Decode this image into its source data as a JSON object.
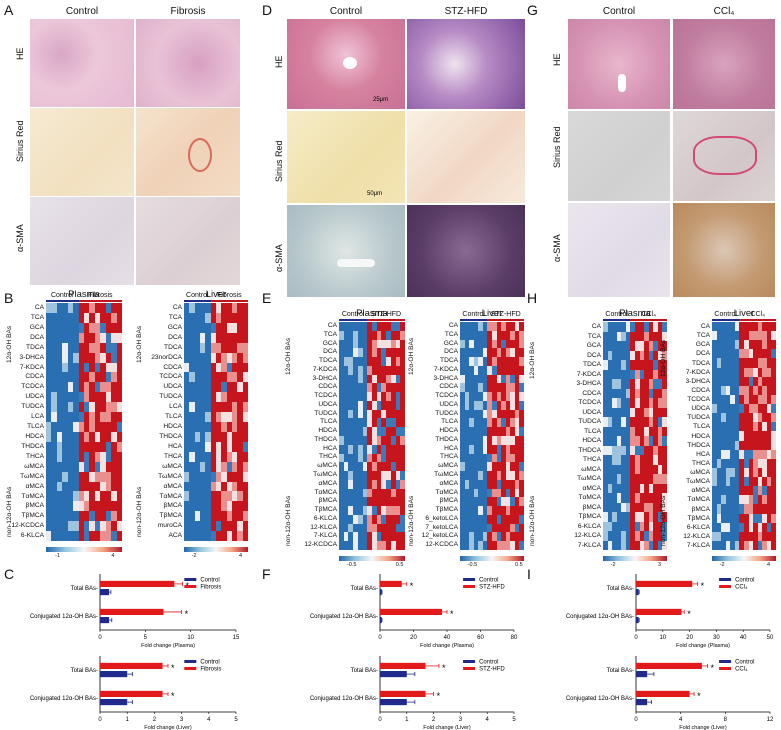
{
  "panels": {
    "A": {
      "label": "A",
      "col1": "Control",
      "col2": "Fibrosis",
      "rows": [
        "HE",
        "Sirius Red",
        "α-SMA"
      ]
    },
    "D": {
      "label": "D",
      "col1": "Control",
      "col2": "STZ-HFD",
      "rows": [
        "HE",
        "Sirius Red",
        "α-SMA"
      ],
      "scale1": "25μm",
      "scale2": "50μm"
    },
    "G": {
      "label": "G",
      "col1": "Control",
      "col2": "CCl₄",
      "rows": [
        "HE",
        "Sirius Red",
        "α-SMA"
      ]
    },
    "B": {
      "label": "B"
    },
    "E": {
      "label": "E"
    },
    "H": {
      "label": "H"
    },
    "C": {
      "label": "C"
    },
    "F": {
      "label": "F"
    },
    "I": {
      "label": "I"
    }
  },
  "heatmaps": {
    "B": {
      "plasma": {
        "title": "Plasma",
        "g1": "Control",
        "g2": "Fibrosis",
        "rows": [
          "CA",
          "TCA",
          "GCA",
          "DCA",
          "TDCA",
          "3-DHCA",
          "7-KDCA",
          "CDCA",
          "TCDCA",
          "UDCA",
          "TUDCA",
          "LCA",
          "TLCA",
          "HDCA",
          "THDCA",
          "THCA",
          "ωMCA",
          "TωMCA",
          "αMCA",
          "TαMCA",
          "βMCA",
          "TβMCA",
          "12-KCDCA",
          "6-KLCA"
        ],
        "side_top": "12α-OH BAs",
        "side_bot": "non-12α-OH BAs",
        "scale": [
          "-1",
          "4"
        ]
      },
      "liver": {
        "title": "Liver",
        "g1": "Control",
        "g2": "Fibrosis",
        "rows": [
          "CA",
          "TCA",
          "GCA",
          "DCA",
          "TDCA",
          "23norDCA",
          "CDCA",
          "TCDCA",
          "UDCA",
          "TUDCA",
          "LCA",
          "TLCA",
          "HDCA",
          "THDCA",
          "HCA",
          "THCA",
          "ωMCA",
          "TωMCA",
          "αMCA",
          "TαMCA",
          "βMCA",
          "TβMCA",
          "muroCA",
          "ACA"
        ],
        "side_top": "12α-OH BAs",
        "side_bot": "non-12α-OH BAs",
        "scale": [
          "-2",
          "4"
        ]
      }
    },
    "E": {
      "plasma": {
        "title": "Plasma",
        "g1": "Control",
        "g2": "STZ-HFD",
        "rows": [
          "CA",
          "TCA",
          "GCA",
          "DCA",
          "TDCA",
          "7-KDCA",
          "3-DHCA",
          "CDCA",
          "TCDCA",
          "UDCA",
          "TUDCA",
          "TLCA",
          "HDCA",
          "THDCA",
          "HCA",
          "THCA",
          "ωMCA",
          "TωMCA",
          "αMCA",
          "TαMCA",
          "βMCA",
          "TβMCA",
          "6-KLCA",
          "12-KLCA",
          "7-KLCA",
          "12-KCDCA"
        ],
        "side_top": "12α-OH BAs",
        "side_bot": "non-12α-OH BAs",
        "scale": [
          "-0.5",
          "0.5"
        ]
      },
      "liver": {
        "title": "Liver",
        "g1": "Control",
        "g2": "STZ-HFD",
        "rows": [
          "CA",
          "TCA",
          "GCA",
          "DCA",
          "TDCA",
          "7-KDCA",
          "3-DHCA",
          "CDCA",
          "TCDCA",
          "UDCA",
          "TUDCA",
          "TLCA",
          "HDCA",
          "THDCA",
          "HCA",
          "THCA",
          "ωMCA",
          "TωMCA",
          "αMCA",
          "TαMCA",
          "βMCA",
          "TβMCA",
          "6_ketoLCA",
          "7_ketoLCA",
          "12_ketoLCA",
          "12-KCDCA"
        ],
        "side_top": "12α-OH BAs",
        "side_bot": "non-12α-OH BAs",
        "scale": [
          "-0.5",
          "0.5"
        ]
      }
    },
    "H": {
      "plasma": {
        "title": "Plasma",
        "g1": "Control",
        "g2": "CCl₄",
        "rows": [
          "CA",
          "TCA",
          "GCA",
          "DCA",
          "TDCA",
          "7-KDCA",
          "3-DHCA",
          "CDCA",
          "TCDCA",
          "UDCA",
          "TUDCA",
          "TLCA",
          "HDCA",
          "THDCA",
          "THCA",
          "ωMCA",
          "TωMCA",
          "αMCA",
          "TαMCA",
          "βMCA",
          "TβMCA",
          "6-KLCA",
          "12-KLCA",
          "7-KLCA"
        ],
        "side_top": "12α-OH BAs",
        "side_bot": "non-12α-OH BAs",
        "scale": [
          "-2",
          "3"
        ]
      },
      "liver": {
        "title": "Liver",
        "g1": "Control",
        "g2": "CCl₄",
        "rows": [
          "CA",
          "TCA",
          "GCA",
          "DCA",
          "TDCA",
          "7-KDCA",
          "3-DHCA",
          "CDCA",
          "TCDCA",
          "UDCA",
          "TUDCA",
          "TLCA",
          "HDCA",
          "THDCA",
          "HCA",
          "THCA",
          "ωMCA",
          "TωMCA",
          "αMCA",
          "TαMCA",
          "βMCA",
          "TβMCA",
          "6-KLCA",
          "12-KLCA",
          "7-KLCA"
        ],
        "side_top": "12α-OH BAs",
        "side_bot": "non-12α-OH BAs",
        "scale": [
          "-2",
          "4"
        ]
      }
    }
  },
  "chart_data": [
    {
      "id": "C-plasma",
      "type": "bar",
      "orientation": "horizontal",
      "categories": [
        "Total BAs",
        "Conjugated 12α-OH BAs"
      ],
      "series": [
        {
          "name": "Control",
          "values": [
            1,
            1
          ],
          "errors": [
            0.2,
            0.3
          ],
          "color": "#1f2a8a"
        },
        {
          "name": "Fibrosis",
          "values": [
            8.2,
            7.0
          ],
          "errors": [
            0.9,
            2.0
          ],
          "color": "#e31a1c"
        }
      ],
      "xlabel": "Fold change (Plasma)",
      "xlim": [
        0,
        15
      ],
      "ticks": [
        "0",
        "5",
        "10",
        "15"
      ],
      "sig": [
        "*",
        "*"
      ]
    },
    {
      "id": "C-liver",
      "type": "bar",
      "orientation": "horizontal",
      "categories": [
        "Total BAs",
        "Conjugated 12α-OH BAs"
      ],
      "series": [
        {
          "name": "Control",
          "values": [
            1,
            1
          ],
          "errors": [
            0.2,
            0.2
          ],
          "color": "#1f2a8a"
        },
        {
          "name": "Fibrosis",
          "values": [
            2.3,
            2.3
          ],
          "errors": [
            0.2,
            0.2
          ],
          "color": "#e31a1c"
        }
      ],
      "xlabel": "Fold change (Liver)",
      "xlim": [
        0,
        5
      ],
      "ticks": [
        "0",
        "1",
        "2",
        "3",
        "4",
        "5"
      ],
      "sig": [
        "*",
        "*"
      ]
    },
    {
      "id": "F-plasma",
      "type": "bar",
      "orientation": "horizontal",
      "categories": [
        "Total BAs",
        "Conjugated 12α-OH BAs"
      ],
      "series": [
        {
          "name": "Control",
          "values": [
            1,
            1
          ],
          "errors": [
            0.2,
            0.2
          ],
          "color": "#1f2a8a"
        },
        {
          "name": "STZ-HFD",
          "values": [
            13,
            37
          ],
          "errors": [
            3,
            3
          ],
          "color": "#e31a1c"
        }
      ],
      "xlabel": "Fold change (Plasma)",
      "xlim": [
        0,
        80
      ],
      "ticks": [
        "0",
        "20",
        "40",
        "60",
        "80"
      ],
      "sig": [
        "*",
        "*"
      ]
    },
    {
      "id": "F-liver",
      "type": "bar",
      "orientation": "horizontal",
      "categories": [
        "Total BAs",
        "Conjugated 12α-OH BAs"
      ],
      "series": [
        {
          "name": "Control",
          "values": [
            1,
            1
          ],
          "errors": [
            0.3,
            0.3
          ],
          "color": "#1f2a8a"
        },
        {
          "name": "STZ-HFD",
          "values": [
            1.7,
            1.7
          ],
          "errors": [
            0.5,
            0.3
          ],
          "color": "#e31a1c"
        }
      ],
      "xlabel": "Fold change (Liver)",
      "xlim": [
        0,
        5
      ],
      "ticks": [
        "0",
        "1",
        "2",
        "3",
        "4",
        "5"
      ],
      "sig": [
        "*",
        "*"
      ]
    },
    {
      "id": "I-plasma",
      "type": "bar",
      "orientation": "horizontal",
      "categories": [
        "Total BAs",
        "Conjugated 12α-OH BAs"
      ],
      "series": [
        {
          "name": "Control",
          "values": [
            1,
            1
          ],
          "errors": [
            0.2,
            0.2
          ],
          "color": "#1f2a8a"
        },
        {
          "name": "CCl₄",
          "values": [
            21,
            17
          ],
          "errors": [
            2,
            1
          ],
          "color": "#e31a1c"
        }
      ],
      "xlabel": "Fold change (Plasma)",
      "xlim": [
        0,
        50
      ],
      "ticks": [
        "0",
        "10",
        "20",
        "30",
        "40",
        "50"
      ],
      "sig": [
        "*",
        "*"
      ]
    },
    {
      "id": "I-liver",
      "type": "bar",
      "orientation": "horizontal",
      "categories": [
        "Total BAs",
        "Conjugated 12α-OH BAs"
      ],
      "series": [
        {
          "name": "Control",
          "values": [
            1,
            1
          ],
          "errors": [
            0.6,
            0.4
          ],
          "color": "#1f2a8a"
        },
        {
          "name": "CCl₄",
          "values": [
            5.9,
            4.8
          ],
          "errors": [
            0.5,
            0.4
          ],
          "color": "#e31a1c"
        }
      ],
      "xlabel": "Fold change (Liver)",
      "xlim": [
        0,
        12
      ],
      "ticks": [
        "0",
        "4",
        "8",
        "12"
      ],
      "sig": [
        "*",
        "*"
      ]
    }
  ]
}
